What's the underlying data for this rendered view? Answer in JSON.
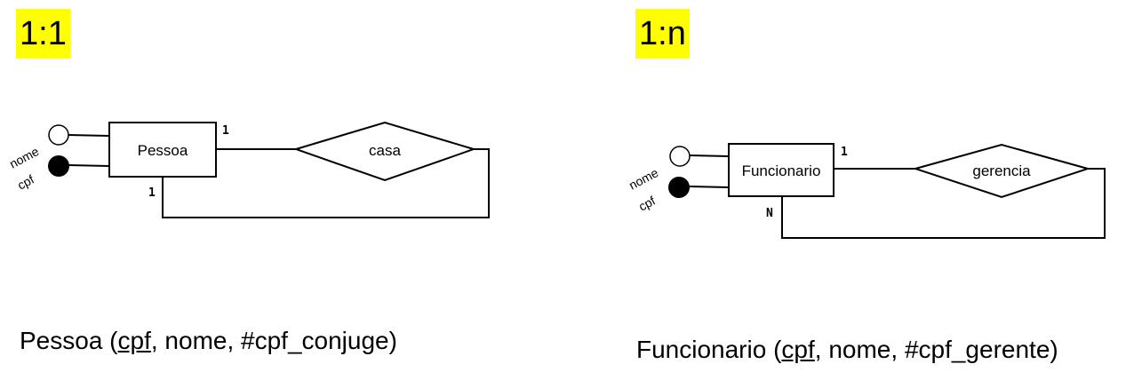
{
  "left": {
    "badge": "1:1",
    "entity": "Pessoa",
    "relationship": "casa",
    "card_top": "1",
    "card_bottom": "1",
    "attr_name": "nome",
    "attr_key": "cpf",
    "schema": {
      "table": "Pessoa",
      "open": " (",
      "pk": "cpf",
      "rest": ", nome, #cpf_conjuge)"
    }
  },
  "right": {
    "badge": "1:n",
    "entity": "Funcionario",
    "relationship": "gerencia",
    "card_top": "1",
    "card_bottom": "N",
    "attr_name": "nome",
    "attr_key": "cpf",
    "schema": {
      "table": "Funcionario",
      "open": " (",
      "pk": "cpf",
      "rest": ", nome, #cpf_gerente)"
    }
  },
  "colors": {
    "badge_bg": "#ffff00",
    "stroke": "#000000"
  }
}
